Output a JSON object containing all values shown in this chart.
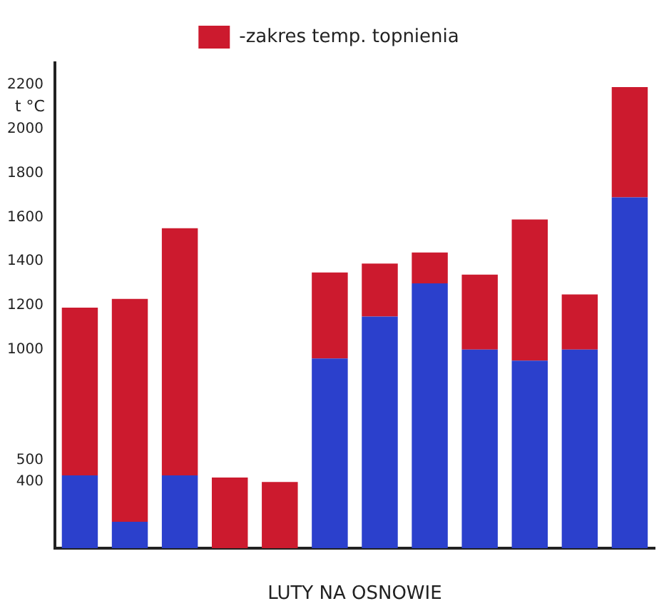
{
  "chart_data": {
    "type": "bar",
    "stacked": true,
    "xlabel": "LUTY NA OSNOWIE",
    "ylabel": "t °C",
    "categories": [
      null,
      null,
      null,
      null,
      null,
      null,
      null,
      null,
      null,
      null,
      null,
      null
    ],
    "series": [
      {
        "color": "#2b40cc",
        "values": [
          430,
          220,
          430,
          null,
          null,
          960,
          1150,
          1300,
          1000,
          950,
          1000,
          1690
        ]
      },
      {
        "name": "-zakres temp. topnienia",
        "color": "#cc1a2e",
        "values": [
          760,
          1010,
          1120,
          420,
          400,
          390,
          240,
          140,
          340,
          640,
          250,
          500
        ]
      }
    ],
    "ylim": [
      100,
      2300
    ],
    "yticks": [
      400,
      500,
      1000,
      1200,
      1400,
      1600,
      1800,
      2000,
      2200
    ],
    "grid": false,
    "legend": "top"
  }
}
